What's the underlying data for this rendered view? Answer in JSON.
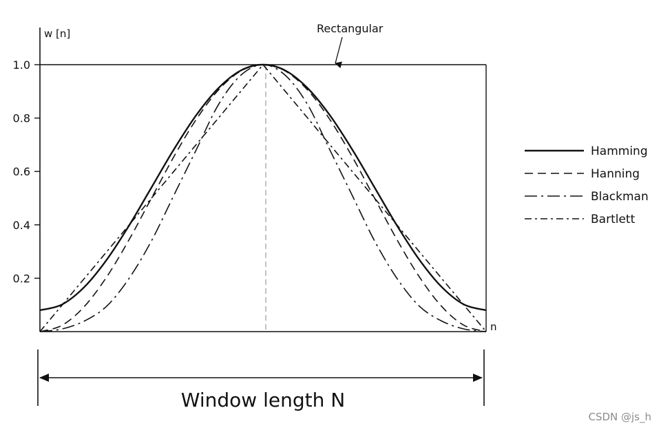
{
  "chart_data": {
    "type": "line",
    "ylabel": "w [n]",
    "xlabel": "n",
    "ylim": [
      0,
      1.0
    ],
    "yticks": [
      {
        "value": 0.2,
        "label": "0.2"
      },
      {
        "value": 0.4,
        "label": "0.4"
      },
      {
        "value": 0.6,
        "label": "0.6"
      },
      {
        "value": 0.8,
        "label": "0.8"
      },
      {
        "value": 1.0,
        "label": "1.0"
      }
    ],
    "x": [
      0,
      0.05,
      0.1,
      0.15,
      0.2,
      0.25,
      0.3,
      0.35,
      0.4,
      0.45,
      0.5,
      0.55,
      0.6,
      0.65,
      0.7,
      0.75,
      0.8,
      0.85,
      0.9,
      0.95,
      1.0
    ],
    "series": [
      {
        "name": "Rectangular",
        "style": "solid",
        "values": [
          1.0,
          1.0,
          1.0,
          1.0,
          1.0,
          1.0,
          1.0,
          1.0,
          1.0,
          1.0,
          1.0,
          1.0,
          1.0,
          1.0,
          1.0,
          1.0,
          1.0,
          1.0,
          1.0,
          1.0,
          1.0
        ]
      },
      {
        "name": "Hamming",
        "style": "solid",
        "values": [
          0.08,
          0.102,
          0.168,
          0.27,
          0.398,
          0.54,
          0.682,
          0.81,
          0.912,
          0.978,
          1.0,
          0.978,
          0.912,
          0.81,
          0.682,
          0.54,
          0.398,
          0.27,
          0.168,
          0.102,
          0.08
        ]
      },
      {
        "name": "Hanning",
        "style": "dashed",
        "values": [
          0.0,
          0.024,
          0.095,
          0.206,
          0.345,
          0.5,
          0.655,
          0.794,
          0.905,
          0.976,
          1.0,
          0.976,
          0.905,
          0.794,
          0.655,
          0.5,
          0.345,
          0.206,
          0.095,
          0.024,
          0.0
        ]
      },
      {
        "name": "Blackman",
        "style": "long-dash-dot",
        "values": [
          0.0,
          0.01,
          0.04,
          0.096,
          0.2,
          0.34,
          0.51,
          0.68,
          0.85,
          0.96,
          1.0,
          0.96,
          0.85,
          0.68,
          0.51,
          0.34,
          0.2,
          0.096,
          0.04,
          0.01,
          0.0
        ]
      },
      {
        "name": "Bartlett",
        "style": "dash-dot",
        "values": [
          0.0,
          0.1,
          0.2,
          0.3,
          0.4,
          0.5,
          0.6,
          0.7,
          0.8,
          0.9,
          1.0,
          0.9,
          0.8,
          0.7,
          0.6,
          0.5,
          0.4,
          0.3,
          0.2,
          0.1,
          0.0
        ]
      }
    ],
    "legend": {
      "placement": "right",
      "items": [
        {
          "label": "Hamming",
          "style": "solid"
        },
        {
          "label": "Hanning",
          "style": "dashed"
        },
        {
          "label": "Blackman",
          "style": "long-dash-dot"
        },
        {
          "label": "Bartlett",
          "style": "dash-dot"
        }
      ]
    },
    "annotations": {
      "rectangular": "Rectangular",
      "window_span": "Window length N"
    },
    "grid": false
  },
  "watermark": "CSDN @js_h",
  "colors": {
    "line": "#111111",
    "center_guide": "#9a9a9a",
    "watermark": "#8c8c8c"
  }
}
